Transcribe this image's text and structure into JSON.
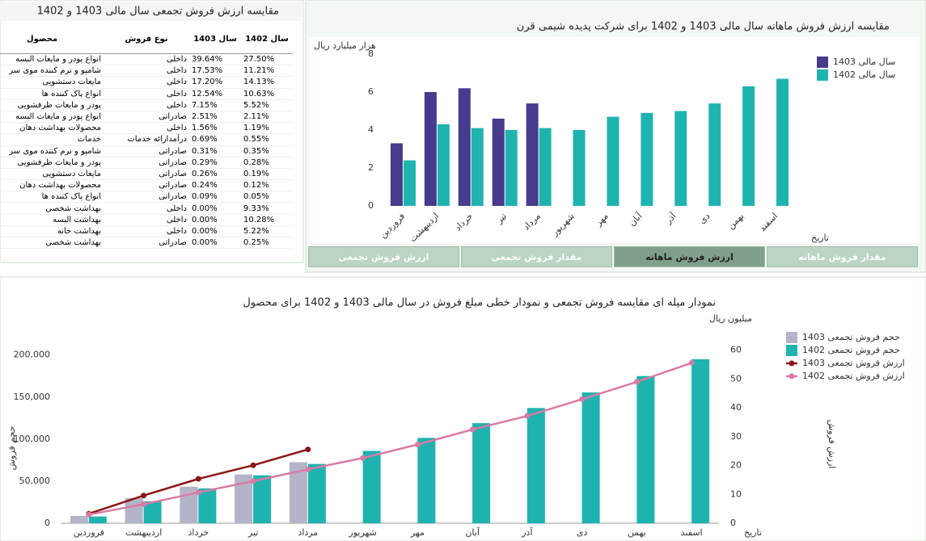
{
  "table_panel": {
    "title": "مقایسه ارزش فروش تجمعی سال مالی 1403 و 1402",
    "columns": [
      "سال 1402",
      "سال 1403",
      "نوع فروش",
      "محصول"
    ],
    "rows": [
      [
        "27.50%",
        "39.64%",
        "داخلی",
        "انواع پودر و مایعات البسه"
      ],
      [
        "11.21%",
        "17.53%",
        "داخلی",
        "شامپو و نرم کننده موی سر"
      ],
      [
        "14.13%",
        "17.20%",
        "داخلی",
        "مایعات دستشویی"
      ],
      [
        "10.63%",
        "12.54%",
        "داخلی",
        "انواع پاک کننده ها"
      ],
      [
        "5.52%",
        "7.15%",
        "داخلی",
        "پودر و مایعات ظرفشویی"
      ],
      [
        "2.11%",
        "2.51%",
        "صادراتی",
        "انواع پودر و مایعات البسه"
      ],
      [
        "1.19%",
        "1.56%",
        "داخلی",
        "محصولات بهداشت دهان"
      ],
      [
        "0.55%",
        "0.69%",
        "درآمدارائه خدمات",
        "خدمات"
      ],
      [
        "0.35%",
        "0.31%",
        "صادراتی",
        "شامپو و نرم کننده موی سر"
      ],
      [
        "0.28%",
        "0.29%",
        "صادراتی",
        "پودر و مایعات ظرفشویی"
      ],
      [
        "0.19%",
        "0.26%",
        "صادراتی",
        "مایعات دستشویی"
      ],
      [
        "0.12%",
        "0.24%",
        "صادراتی",
        "محصولات بهداشت دهان"
      ],
      [
        "0.05%",
        "0.09%",
        "صادراتی",
        "انواع پاک کننده ها"
      ],
      [
        "9.33%",
        "0.00%",
        "داخلی",
        "بهداشت شخصی"
      ],
      [
        "10.28%",
        "0.00%",
        "داخلی",
        "بهداشت البسه"
      ],
      [
        "5.22%",
        "0.00%",
        "داخلی",
        "بهداشت خانه"
      ],
      [
        "0.25%",
        "0.00%",
        "صادراتی",
        "بهداشت شخصی"
      ]
    ]
  },
  "tabs": [
    "ارزش فروش تجمعی",
    "مقدار فروش تجمعی",
    "ارزش فروش ماهانه",
    "مقدار فروش ماهانه"
  ],
  "active_tab": 2,
  "chart_data": [
    {
      "type": "bar",
      "title": "مقایسه ارزش فروش ماهانه سال مالی 1403 و 1402 برای شرکت پدیده شیمی قرن",
      "y_label": "هزار میلیارد ریال",
      "x_label": "تاریخ",
      "categories": [
        "فروردین",
        "اردیبهشت",
        "خرداد",
        "تیر",
        "مرداد",
        "شهریور",
        "مهر",
        "آبان",
        "آذر",
        "دی",
        "بهمن",
        "اسفند"
      ],
      "series": [
        {
          "name": "سال مالی 1403",
          "color": "#463b8c",
          "values": [
            3.3,
            6.0,
            6.2,
            4.6,
            5.4,
            null,
            null,
            null,
            null,
            null,
            null,
            null
          ]
        },
        {
          "name": "سال مالی 1402",
          "color": "#1fb3b0",
          "values": [
            2.4,
            4.3,
            4.1,
            4.0,
            4.1,
            4.0,
            4.7,
            4.9,
            5.0,
            5.4,
            6.3,
            6.7
          ]
        }
      ],
      "ylim": [
        0,
        8
      ],
      "yticks": [
        0,
        2,
        4,
        6,
        8
      ],
      "grid": false,
      "legend": "top-right"
    },
    {
      "type": "bar-line",
      "title": "نمودار میله ای مقایسه فروش تجمعی و نمودار خطی مبلغ فروش در سال مالی 1403 و 1402 برای محصول",
      "y_label": "حجم فروش",
      "y2_label": "ارزش فروش",
      "y2_unit": "میلیون ریال",
      "x_label": "تاریخ",
      "categories": [
        "فروردین",
        "اردیبهشت",
        "خرداد",
        "تیر",
        "مرداد",
        "شهریور",
        "مهر",
        "آبان",
        "آذر",
        "دی",
        "بهمن",
        "اسفند"
      ],
      "series": [
        {
          "name": "حجم فروش تجمعی 1403",
          "type": "bar",
          "color": "#b4b4c8",
          "values": [
            8700,
            30000,
            43500,
            58000,
            72500,
            null,
            null,
            null,
            null,
            null,
            null,
            null
          ]
        },
        {
          "name": "حجم فروش تجمعی 1402",
          "type": "bar",
          "color": "#1fb3b0",
          "values": [
            8000,
            26000,
            41500,
            57000,
            70500,
            86000,
            101500,
            119000,
            137000,
            155500,
            175000,
            195000
          ]
        },
        {
          "name": "ارزش فروش تجمعی 1403",
          "type": "line",
          "axis": "y2",
          "color": "#8b1515",
          "values": [
            3.3,
            9.6,
            15.4,
            20.1,
            25.6,
            null,
            null,
            null,
            null,
            null,
            null,
            null
          ]
        },
        {
          "name": "ارزش فروش تجمعی 1402",
          "type": "line",
          "axis": "y2",
          "color": "#d97aa6",
          "values": [
            3.0,
            6.6,
            10.7,
            14.6,
            18.7,
            22.6,
            27.3,
            32.5,
            37.2,
            43.0,
            49.0,
            55.6
          ]
        }
      ],
      "ylim": [
        0,
        240000
      ],
      "yticks": [
        0,
        {
          "value": 50000,
          "label": "50,000"
        },
        {
          "value": 100000,
          "label": "100,000"
        },
        {
          "value": 150000,
          "label": "150,000"
        },
        {
          "value": 200000,
          "label": "200,000"
        }
      ],
      "y2lim": [
        0,
        70
      ],
      "y2ticks": [
        0,
        10,
        20,
        30,
        40,
        50,
        60
      ],
      "grid": false,
      "legend": "top-right"
    }
  ]
}
